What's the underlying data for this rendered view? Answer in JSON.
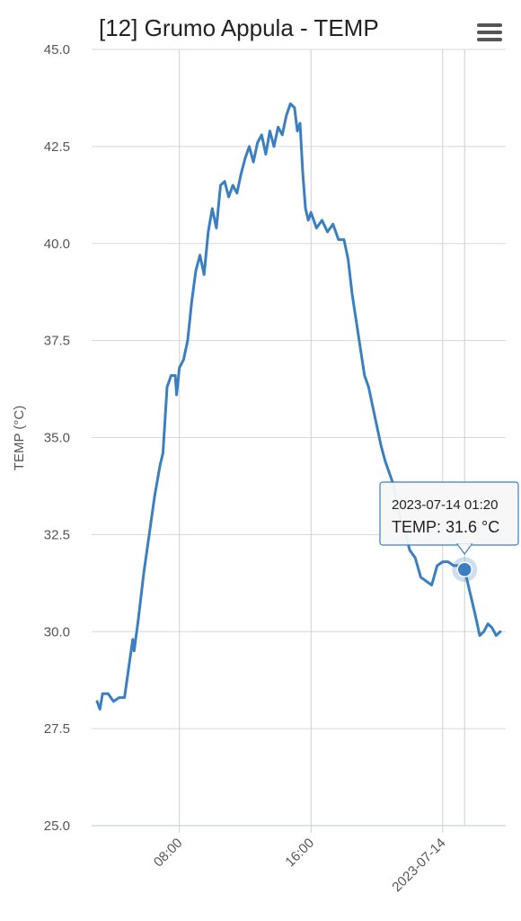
{
  "chart_data": {
    "type": "line",
    "title": "[12] Grumo Appula - TEMP",
    "ylabel": "TEMP (°C)",
    "xlabel": "",
    "ylim": [
      25.0,
      45.0
    ],
    "yticks": [
      "25.0",
      "27.5",
      "30.0",
      "32.5",
      "35.0",
      "37.5",
      "40.0",
      "42.5",
      "45.0"
    ],
    "xlim": [
      "2023-07-13 02:40",
      "2023-07-14 03:50"
    ],
    "xticks": [
      {
        "label": "08:00",
        "t": "2023-07-13 08:00"
      },
      {
        "label": "16:00",
        "t": "2023-07-13 16:00"
      },
      {
        "label": "2023-07-14",
        "t": "2023-07-14 00:00"
      }
    ],
    "grid": true,
    "color": "#3a7fc1",
    "series": [
      {
        "name": "TEMP",
        "points": [
          [
            "2023-07-13 03:00",
            28.2
          ],
          [
            "2023-07-13 03:10",
            28.0
          ],
          [
            "2023-07-13 03:20",
            28.4
          ],
          [
            "2023-07-13 03:40",
            28.4
          ],
          [
            "2023-07-13 04:00",
            28.2
          ],
          [
            "2023-07-13 04:20",
            28.3
          ],
          [
            "2023-07-13 04:40",
            28.3
          ],
          [
            "2023-07-13 05:00",
            29.3
          ],
          [
            "2023-07-13 05:10",
            29.8
          ],
          [
            "2023-07-13 05:15",
            29.5
          ],
          [
            "2023-07-13 05:30",
            30.3
          ],
          [
            "2023-07-13 05:50",
            31.5
          ],
          [
            "2023-07-13 06:10",
            32.5
          ],
          [
            "2023-07-13 06:30",
            33.5
          ],
          [
            "2023-07-13 06:50",
            34.3
          ],
          [
            "2023-07-13 07:00",
            34.6
          ],
          [
            "2023-07-13 07:15",
            36.3
          ],
          [
            "2023-07-13 07:30",
            36.6
          ],
          [
            "2023-07-13 07:45",
            36.6
          ],
          [
            "2023-07-13 07:50",
            36.1
          ],
          [
            "2023-07-13 08:00",
            36.8
          ],
          [
            "2023-07-13 08:15",
            37.0
          ],
          [
            "2023-07-13 08:30",
            37.5
          ],
          [
            "2023-07-13 08:45",
            38.5
          ],
          [
            "2023-07-13 09:00",
            39.3
          ],
          [
            "2023-07-13 09:15",
            39.7
          ],
          [
            "2023-07-13 09:30",
            39.2
          ],
          [
            "2023-07-13 09:45",
            40.3
          ],
          [
            "2023-07-13 10:00",
            40.9
          ],
          [
            "2023-07-13 10:15",
            40.4
          ],
          [
            "2023-07-13 10:30",
            41.5
          ],
          [
            "2023-07-13 10:45",
            41.6
          ],
          [
            "2023-07-13 11:00",
            41.2
          ],
          [
            "2023-07-13 11:15",
            41.5
          ],
          [
            "2023-07-13 11:30",
            41.3
          ],
          [
            "2023-07-13 11:45",
            41.8
          ],
          [
            "2023-07-13 12:00",
            42.2
          ],
          [
            "2023-07-13 12:15",
            42.5
          ],
          [
            "2023-07-13 12:30",
            42.1
          ],
          [
            "2023-07-13 12:45",
            42.6
          ],
          [
            "2023-07-13 13:00",
            42.8
          ],
          [
            "2023-07-13 13:15",
            42.3
          ],
          [
            "2023-07-13 13:30",
            42.9
          ],
          [
            "2023-07-13 13:45",
            42.5
          ],
          [
            "2023-07-13 14:00",
            43.0
          ],
          [
            "2023-07-13 14:15",
            42.8
          ],
          [
            "2023-07-13 14:30",
            43.3
          ],
          [
            "2023-07-13 14:45",
            43.6
          ],
          [
            "2023-07-13 15:00",
            43.5
          ],
          [
            "2023-07-13 15:10",
            42.9
          ],
          [
            "2023-07-13 15:20",
            43.1
          ],
          [
            "2023-07-13 15:30",
            41.8
          ],
          [
            "2023-07-13 15:40",
            40.9
          ],
          [
            "2023-07-13 15:50",
            40.6
          ],
          [
            "2023-07-13 16:00",
            40.8
          ],
          [
            "2023-07-13 16:20",
            40.4
          ],
          [
            "2023-07-13 16:40",
            40.6
          ],
          [
            "2023-07-13 17:00",
            40.3
          ],
          [
            "2023-07-13 17:20",
            40.5
          ],
          [
            "2023-07-13 17:40",
            40.1
          ],
          [
            "2023-07-13 18:00",
            40.1
          ],
          [
            "2023-07-13 18:15",
            39.6
          ],
          [
            "2023-07-13 18:30",
            38.7
          ],
          [
            "2023-07-13 18:45",
            38.0
          ],
          [
            "2023-07-13 19:00",
            37.3
          ],
          [
            "2023-07-13 19:15",
            36.6
          ],
          [
            "2023-07-13 19:30",
            36.3
          ],
          [
            "2023-07-13 19:45",
            35.8
          ],
          [
            "2023-07-13 20:00",
            35.3
          ],
          [
            "2023-07-13 20:15",
            34.8
          ],
          [
            "2023-07-13 20:30",
            34.4
          ],
          [
            "2023-07-13 20:45",
            34.1
          ],
          [
            "2023-07-13 21:00",
            33.8
          ],
          [
            "2023-07-13 21:15",
            33.3
          ],
          [
            "2023-07-13 21:30",
            32.8
          ],
          [
            "2023-07-13 21:45",
            32.5
          ],
          [
            "2023-07-13 22:00",
            32.1
          ],
          [
            "2023-07-13 22:20",
            31.9
          ],
          [
            "2023-07-13 22:40",
            31.4
          ],
          [
            "2023-07-13 23:00",
            31.3
          ],
          [
            "2023-07-13 23:20",
            31.2
          ],
          [
            "2023-07-13 23:40",
            31.7
          ],
          [
            "2023-07-14 00:00",
            31.8
          ],
          [
            "2023-07-14 00:20",
            31.8
          ],
          [
            "2023-07-14 00:40",
            31.7
          ],
          [
            "2023-07-14 01:00",
            31.7
          ],
          [
            "2023-07-14 01:20",
            31.6
          ],
          [
            "2023-07-14 01:40",
            31.0
          ],
          [
            "2023-07-14 02:00",
            30.4
          ],
          [
            "2023-07-14 02:15",
            29.9
          ],
          [
            "2023-07-14 02:30",
            30.0
          ],
          [
            "2023-07-14 02:45",
            30.2
          ],
          [
            "2023-07-14 03:00",
            30.1
          ],
          [
            "2023-07-14 03:15",
            29.9
          ],
          [
            "2023-07-14 03:30",
            30.0
          ]
        ]
      }
    ],
    "highlight": {
      "t": "2023-07-14 01:20",
      "value": 31.6
    }
  },
  "tooltip": {
    "time_label": "2023-07-14 01:20",
    "value_label": "TEMP: 31.6 °C"
  },
  "toolbar": {
    "menu_icon": "hamburger-menu-icon"
  }
}
